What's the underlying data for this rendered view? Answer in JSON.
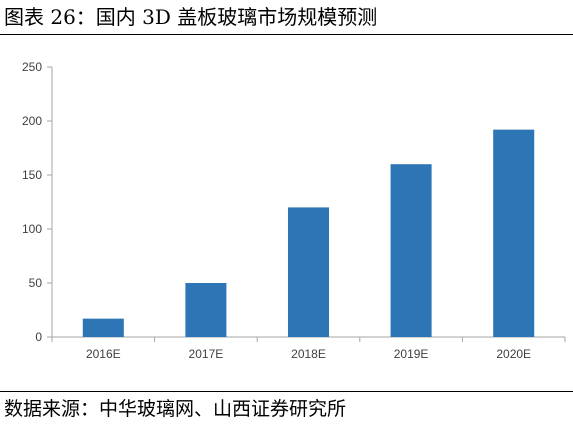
{
  "header": {
    "title": "图表 26：国内 3D 盖板玻璃市场规模预测"
  },
  "footer": {
    "source": "数据来源：中华玻璃网、山西证券研究所"
  },
  "chart_data": {
    "type": "bar",
    "title": "",
    "xlabel": "",
    "ylabel": "",
    "categories": [
      "2016E",
      "2017E",
      "2018E",
      "2019E",
      "2020E"
    ],
    "values": [
      17,
      50,
      120,
      160,
      192
    ],
    "ylim": [
      0,
      250
    ],
    "yticks": [
      0,
      50,
      100,
      150,
      200,
      250
    ],
    "bar_color": "#2e75b6",
    "grid": false,
    "legend": "none"
  }
}
